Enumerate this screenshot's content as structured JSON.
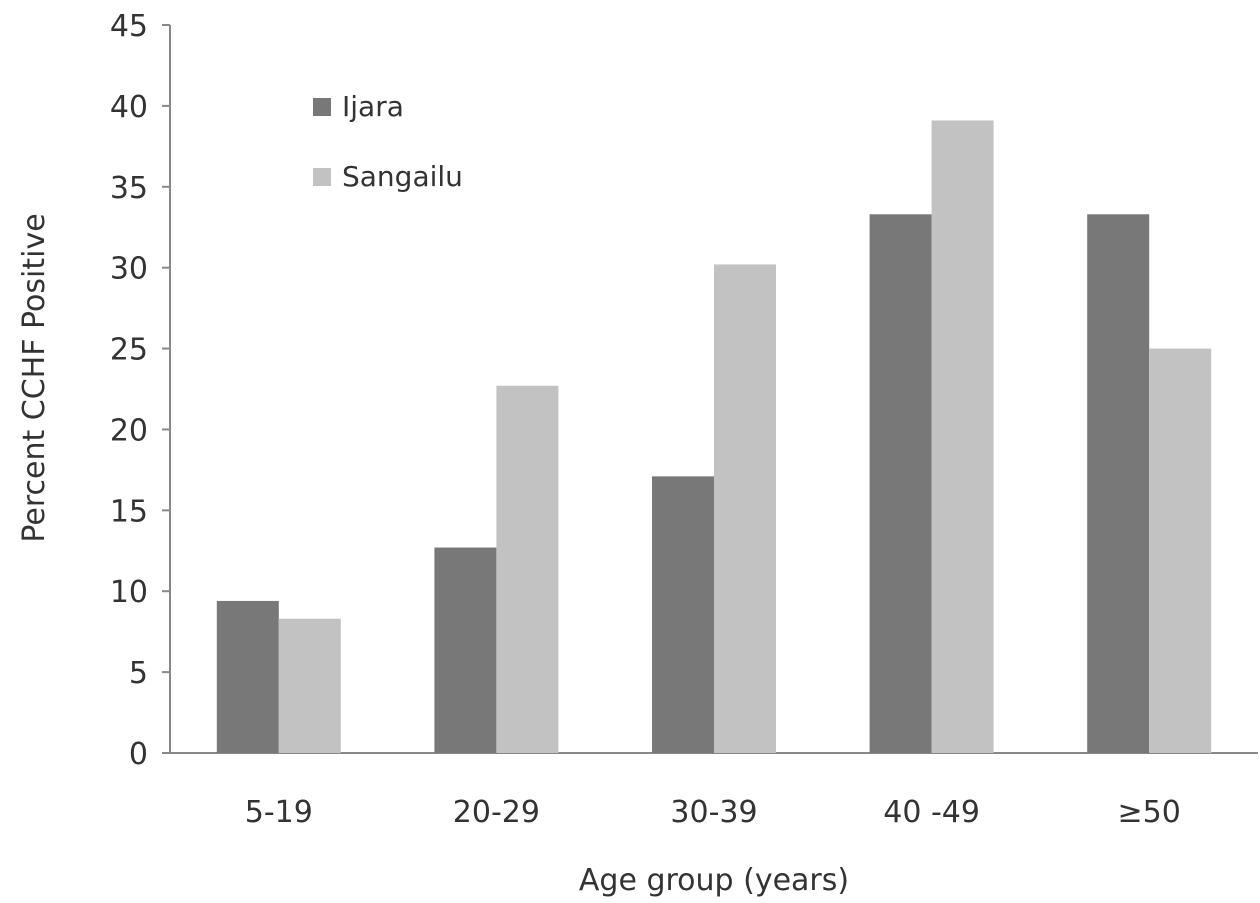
{
  "chart_data": {
    "type": "bar",
    "title": "",
    "xlabel": "Age group (years)",
    "ylabel": "Percent CCHF Positive",
    "categories": [
      "5-19",
      "20-29",
      "30-39",
      "40 -49",
      "≥50"
    ],
    "series": [
      {
        "name": "Ijara",
        "values": [
          9.4,
          12.7,
          17.1,
          33.3,
          33.3
        ],
        "color": "#787878"
      },
      {
        "name": "Sangailu",
        "values": [
          8.3,
          22.7,
          30.2,
          39.1,
          25.0
        ],
        "color": "#c2c2c2"
      }
    ],
    "ylim": [
      0,
      45
    ],
    "yticks": [
      0,
      5,
      10,
      15,
      20,
      25,
      30,
      35,
      40,
      45
    ],
    "grid": false,
    "legend_position": "top-left"
  }
}
